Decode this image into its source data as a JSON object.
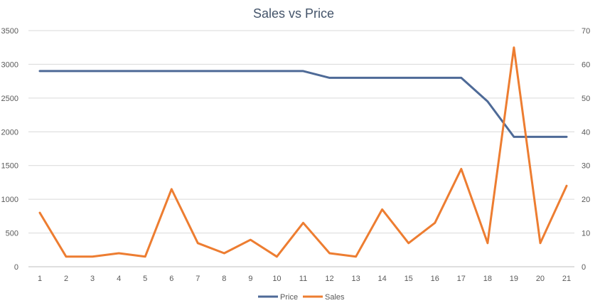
{
  "chart_data": {
    "type": "line",
    "title": "Sales vs Price",
    "x": [
      "1",
      "2",
      "3",
      "4",
      "5",
      "6",
      "7",
      "8",
      "9",
      "10",
      "11",
      "12",
      "13",
      "14",
      "15",
      "16",
      "17",
      "18",
      "19",
      "20",
      "21"
    ],
    "y_left_ticks": [
      "0",
      "500",
      "1000",
      "1500",
      "2000",
      "2500",
      "3000",
      "3500"
    ],
    "y_right_ticks": [
      "0",
      "10",
      "20",
      "30",
      "40",
      "50",
      "60",
      "70"
    ],
    "ylim_left": [
      0,
      3500
    ],
    "ylim_right": [
      0,
      70
    ],
    "grid": true,
    "legend_position": "bottom",
    "series": [
      {
        "name": "Price",
        "axis": "right",
        "color": "#4e6a97",
        "values": [
          58,
          58,
          58,
          58,
          58,
          58,
          58,
          58,
          58,
          58,
          58,
          56,
          56,
          56,
          56,
          56,
          56,
          49,
          38.5,
          38.5,
          38.5
        ]
      },
      {
        "name": "Sales",
        "axis": "left",
        "color": "#ed7d31",
        "values": [
          800,
          150,
          150,
          200,
          150,
          1150,
          350,
          200,
          400,
          150,
          650,
          200,
          150,
          850,
          350,
          650,
          1450,
          350,
          3250,
          350,
          1200
        ]
      }
    ]
  }
}
